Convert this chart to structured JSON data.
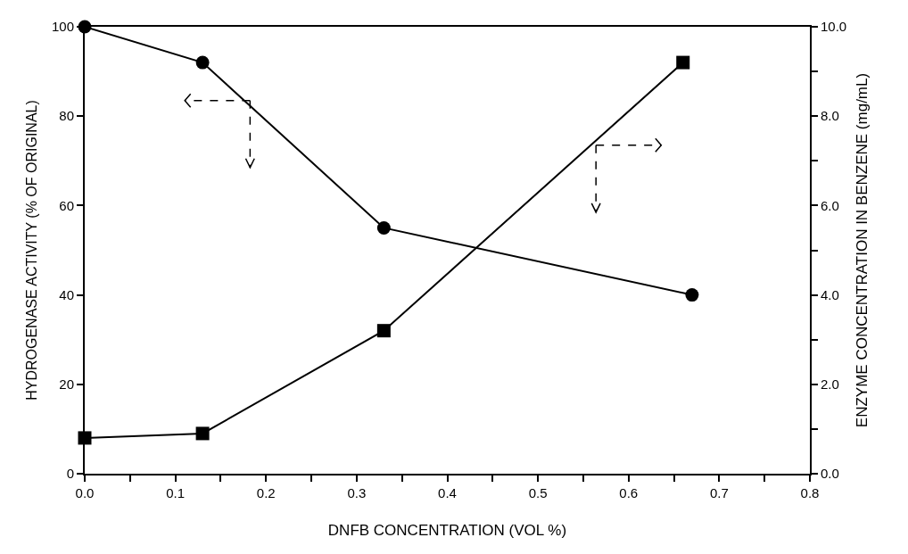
{
  "chart_data": {
    "type": "line",
    "xlabel": "DNFB CONCENTRATION (VOL %)",
    "ylabel": "HYDROGENASE ACTIVITY (% OF ORIGINAL)",
    "y2label": "ENZYME CONCENTRATION IN BENZENE (mg/mL)",
    "series": [
      {
        "color": "#000000",
        "marker": "circle",
        "x": [
          0.0,
          0.13,
          0.33,
          0.67
        ],
        "values": [
          100,
          92,
          55,
          40
        ]
      },
      {
        "color": "#000000",
        "marker": "square",
        "axis": "y2",
        "x": [
          0.0,
          0.13,
          0.33,
          0.66
        ],
        "values": [
          0.8,
          0.9,
          3.2,
          9.2
        ]
      }
    ],
    "xlim": [
      0,
      0.8
    ],
    "xticks": [
      {
        "value": 0,
        "label": "0.0"
      },
      {
        "value": 0.05,
        "label": null
      },
      {
        "value": 0.1,
        "label": "0.1"
      },
      {
        "value": 0.15,
        "label": null
      },
      {
        "value": 0.2,
        "label": "0.2"
      },
      {
        "value": 0.25,
        "label": null
      },
      {
        "value": 0.3,
        "label": "0.3"
      },
      {
        "value": 0.35,
        "label": null
      },
      {
        "value": 0.4,
        "label": "0.4"
      },
      {
        "value": 0.45,
        "label": null
      },
      {
        "value": 0.5,
        "label": "0.5"
      },
      {
        "value": 0.55,
        "label": null
      },
      {
        "value": 0.6,
        "label": "0.6"
      },
      {
        "value": 0.65,
        "label": null
      },
      {
        "value": 0.7,
        "label": "0.7"
      },
      {
        "value": 0.75,
        "label": null
      },
      {
        "value": 0.8,
        "label": "0.8"
      }
    ],
    "ylim": [
      0,
      100
    ],
    "yticks": [
      0,
      20,
      40,
      60,
      80,
      100
    ],
    "y2lim": [
      0,
      10
    ],
    "y2ticks": [
      {
        "value": 0,
        "label": "0.0"
      },
      {
        "value": 1,
        "label": null
      },
      {
        "value": 2,
        "label": "2.0"
      },
      {
        "value": 3,
        "label": null
      },
      {
        "value": 4,
        "label": "4.0"
      },
      {
        "value": 5,
        "label": null
      },
      {
        "value": 6,
        "label": "6.0"
      },
      {
        "value": 7,
        "label": null
      },
      {
        "value": 8,
        "label": "8.0"
      },
      {
        "value": 9,
        "label": null
      },
      {
        "value": 10,
        "label": "10.0"
      }
    ],
    "line_style": "solid"
  }
}
